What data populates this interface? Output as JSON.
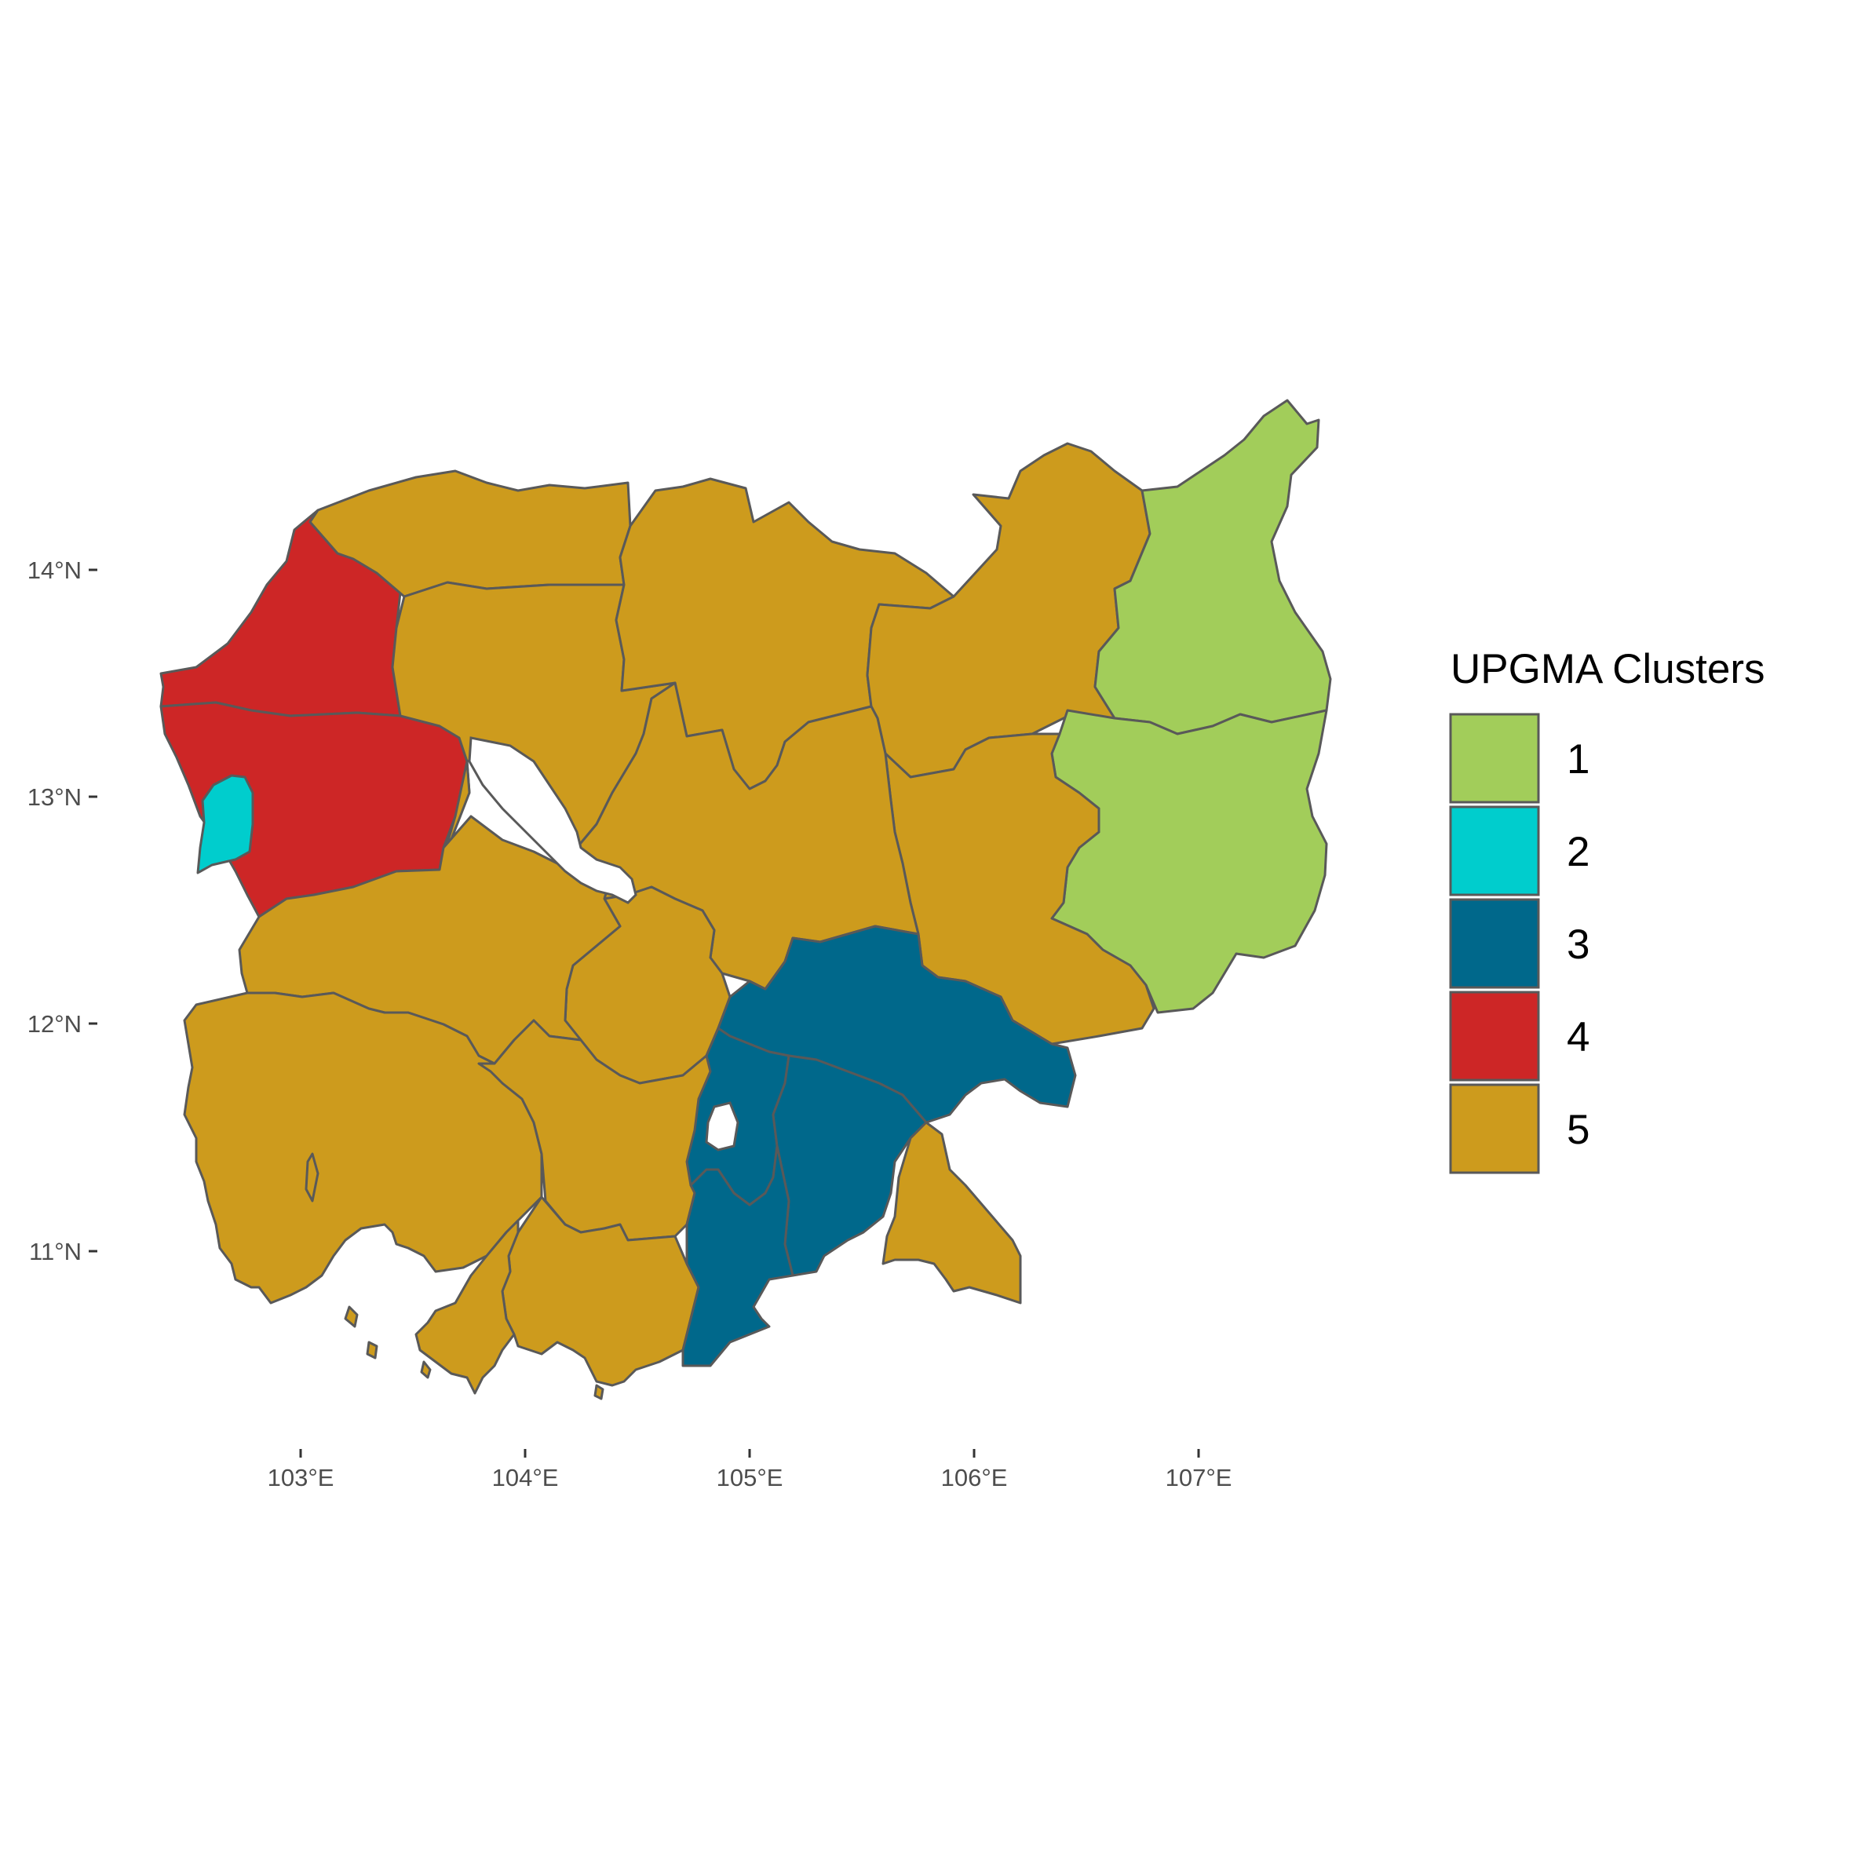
{
  "axes": {
    "y_ticks": [
      "14°N",
      "13°N",
      "12°N",
      "11°N"
    ],
    "x_ticks": [
      "103°E",
      "104°E",
      "105°E",
      "106°E",
      "107°E"
    ]
  },
  "legend": {
    "title": "UPGMA Clusters",
    "items": [
      {
        "label": "1",
        "color": "#a2cd5a"
      },
      {
        "label": "2",
        "color": "#00cdcd"
      },
      {
        "label": "3",
        "color": "#00688b"
      },
      {
        "label": "4",
        "color": "#cd2626"
      },
      {
        "label": "5",
        "color": "#cd9b1d"
      }
    ]
  },
  "colors": {
    "cluster_1": "#a2cd5a",
    "cluster_2": "#00cdcd",
    "cluster_3": "#00688b",
    "cluster_4": "#cd2626",
    "cluster_5": "#cd9b1d",
    "border": "#595959",
    "water": "#ffffff"
  }
}
